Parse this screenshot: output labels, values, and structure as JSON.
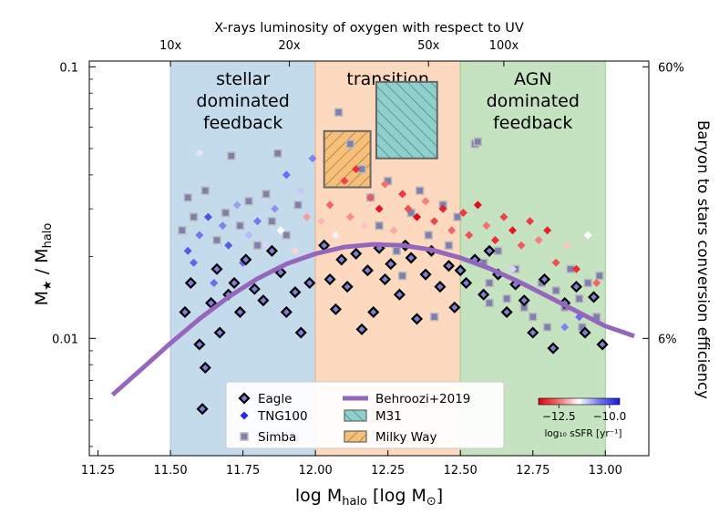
{
  "chart_data": {
    "type": "scatter",
    "top_axis_label": "X-rays luminosity of oxygen with respect to UV",
    "top_ticks": [
      {
        "x": 11.5,
        "label": "10x"
      },
      {
        "x": 11.91,
        "label": "20x"
      },
      {
        "x": 12.39,
        "label": "50x"
      },
      {
        "x": 12.65,
        "label": "100x"
      }
    ],
    "xlabel": "log M_halo [log M_⊙]",
    "ylabel": "M★ / M_halo",
    "right_ylabel": "Baryon to stars conversion efficiency",
    "xlim": [
      11.22,
      13.15
    ],
    "ylim_log": [
      0.0037,
      0.105
    ],
    "y_scale": "log",
    "x_ticks": [
      11.25,
      11.5,
      11.75,
      12.0,
      12.25,
      12.5,
      12.75,
      13.0
    ],
    "x_tick_labels": [
      "11.25",
      "11.50",
      "11.75",
      "12.00",
      "12.25",
      "12.50",
      "12.75",
      "13.00"
    ],
    "y_ticks": [
      {
        "y": 0.1,
        "label": "0.1"
      },
      {
        "y": 0.01,
        "label": "0.01"
      }
    ],
    "right_ticks": [
      {
        "y": 0.1,
        "label": "60%"
      },
      {
        "y": 0.01,
        "label": "6%"
      }
    ],
    "regions": [
      {
        "x0": 11.5,
        "x1": 12.0,
        "color": "#c4dbec",
        "border": "#9ec2e0",
        "label_lines": [
          "stellar",
          "dominated",
          "feedback"
        ]
      },
      {
        "x0": 12.0,
        "x1": 12.5,
        "color": "#fcd9bf",
        "border": "#f4b27f",
        "label_lines": [
          "transition"
        ]
      },
      {
        "x0": 12.5,
        "x1": 13.0,
        "color": "#c6e3c1",
        "border": "#98cc90",
        "label_lines": [
          "AGN",
          "dominated",
          "feedback"
        ]
      }
    ],
    "boxes": [
      {
        "name": "M31",
        "x0": 12.21,
        "x1": 12.42,
        "y0": 0.046,
        "y1": 0.088,
        "fill": "#8fcfcc",
        "hatch_dir": "ne"
      },
      {
        "name": "Milky Way",
        "x0": 12.03,
        "x1": 12.19,
        "y0": 0.036,
        "y1": 0.058,
        "fill": "#f7c07a",
        "hatch_dir": "nw"
      }
    ],
    "behroozi": {
      "name": "Behroozi+2019",
      "color": "#9467bd",
      "x": [
        11.3,
        11.4,
        11.5,
        11.6,
        11.7,
        11.8,
        11.9,
        12.0,
        12.1,
        12.2,
        12.3,
        12.4,
        12.5,
        12.6,
        12.7,
        12.8,
        12.9,
        13.0,
        13.1
      ],
      "y": [
        0.0062,
        0.0077,
        0.0096,
        0.0118,
        0.0142,
        0.0166,
        0.0188,
        0.0205,
        0.0217,
        0.0222,
        0.022,
        0.0212,
        0.0198,
        0.0181,
        0.0162,
        0.0143,
        0.0126,
        0.0111,
        0.0102
      ]
    },
    "series": [
      {
        "name": "Eagle",
        "marker": "diamond-outlined",
        "points": [
          [
            11.55,
            0.0125
          ],
          [
            11.57,
            0.016
          ],
          [
            11.6,
            0.0095
          ],
          [
            11.61,
            0.0055
          ],
          [
            11.62,
            0.0078
          ],
          [
            11.64,
            0.0135
          ],
          [
            11.66,
            0.018
          ],
          [
            11.67,
            0.0105
          ],
          [
            11.7,
            0.0145
          ],
          [
            11.72,
            0.016
          ],
          [
            11.74,
            0.0125
          ],
          [
            11.76,
            0.0195
          ],
          [
            11.79,
            0.0152
          ],
          [
            11.82,
            0.0138
          ],
          [
            11.85,
            0.021
          ],
          [
            11.88,
            0.0175
          ],
          [
            11.9,
            0.0125
          ],
          [
            11.93,
            0.0148
          ],
          [
            11.95,
            0.0105
          ],
          [
            11.98,
            0.016
          ],
          [
            12.03,
            0.022
          ],
          [
            12.05,
            0.0165
          ],
          [
            12.07,
            0.0128
          ],
          [
            12.09,
            0.0195
          ],
          [
            12.11,
            0.0155
          ],
          [
            12.14,
            0.0205
          ],
          [
            12.16,
            0.0108
          ],
          [
            12.18,
            0.0178
          ],
          [
            12.2,
            0.0125
          ],
          [
            12.22,
            0.0215
          ],
          [
            12.24,
            0.0165
          ],
          [
            12.26,
            0.0188
          ],
          [
            12.29,
            0.0145
          ],
          [
            12.31,
            0.022
          ],
          [
            12.33,
            0.0198
          ],
          [
            12.35,
            0.0118
          ],
          [
            12.38,
            0.0172
          ],
          [
            12.4,
            0.021
          ],
          [
            12.43,
            0.0155
          ],
          [
            12.46,
            0.0185
          ],
          [
            12.48,
            0.013
          ],
          [
            12.5,
            0.0178
          ],
          [
            12.52,
            0.016
          ],
          [
            12.55,
            0.0195
          ],
          [
            12.58,
            0.0145
          ],
          [
            12.6,
            0.021
          ],
          [
            12.63,
            0.0172
          ],
          [
            12.66,
            0.0125
          ],
          [
            12.69,
            0.0158
          ],
          [
            12.72,
            0.0138
          ],
          [
            12.75,
            0.0105
          ],
          [
            12.79,
            0.0165
          ],
          [
            12.82,
            0.0092
          ],
          [
            12.86,
            0.0135
          ],
          [
            12.9,
            0.0155
          ],
          [
            12.93,
            0.0105
          ],
          [
            12.96,
            0.0142
          ],
          [
            12.99,
            0.0095
          ]
        ]
      },
      {
        "name": "TNG100",
        "marker": "diamond",
        "points": [
          [
            11.56,
            0.021,
            -10.2
          ],
          [
            11.58,
            0.019,
            -10.3
          ],
          [
            11.6,
            0.024,
            -10.5
          ],
          [
            11.63,
            0.028,
            -10.1
          ],
          [
            11.65,
            0.016,
            -10.4
          ],
          [
            11.68,
            0.026,
            -10.6
          ],
          [
            11.7,
            0.022,
            -10.2
          ],
          [
            11.73,
            0.031,
            -10.8
          ],
          [
            11.75,
            0.019,
            -10.3
          ],
          [
            11.77,
            0.024,
            -11.0
          ],
          [
            11.8,
            0.027,
            -10.5
          ],
          [
            11.83,
            0.022,
            -11.2
          ],
          [
            11.86,
            0.03,
            -10.7
          ],
          [
            11.88,
            0.025,
            -11.5
          ],
          [
            11.9,
            0.04,
            -10.4
          ],
          [
            11.93,
            0.021,
            -11.8
          ],
          [
            11.95,
            0.035,
            -11.1
          ],
          [
            11.97,
            0.028,
            -12.2
          ],
          [
            11.99,
            0.046,
            -10.6
          ],
          [
            11.6,
            0.048,
            -11.3
          ],
          [
            12.02,
            0.027,
            -12.0
          ],
          [
            12.05,
            0.031,
            -12.6
          ],
          [
            12.07,
            0.024,
            -11.4
          ],
          [
            12.1,
            0.038,
            -12.9
          ],
          [
            12.12,
            0.028,
            -12.3
          ],
          [
            12.14,
            0.042,
            -13.1
          ],
          [
            12.17,
            0.026,
            -11.9
          ],
          [
            12.19,
            0.033,
            -12.7
          ],
          [
            12.22,
            0.03,
            -13.3
          ],
          [
            12.24,
            0.037,
            -12.5
          ],
          [
            12.27,
            0.025,
            -12.1
          ],
          [
            12.3,
            0.034,
            -13.0
          ],
          [
            12.32,
            0.03,
            -12.8
          ],
          [
            12.35,
            0.028,
            -13.4
          ],
          [
            12.38,
            0.032,
            -12.4
          ],
          [
            12.41,
            0.027,
            -12.9
          ],
          [
            12.44,
            0.03,
            -13.2
          ],
          [
            12.47,
            0.025,
            -12.6
          ],
          [
            12.51,
            0.029,
            -13.0
          ],
          [
            12.53,
            0.024,
            -12.8
          ],
          [
            12.56,
            0.031,
            -13.4
          ],
          [
            12.59,
            0.026,
            -12.5
          ],
          [
            12.62,
            0.023,
            -13.1
          ],
          [
            12.65,
            0.028,
            -12.9
          ],
          [
            12.68,
            0.025,
            -13.3
          ],
          [
            12.71,
            0.022,
            -12.7
          ],
          [
            12.74,
            0.027,
            -13.0
          ],
          [
            12.77,
            0.023,
            -12.4
          ],
          [
            12.8,
            0.025,
            -13.2
          ],
          [
            12.83,
            0.019,
            -12.8
          ],
          [
            12.87,
            0.022,
            -11.9
          ],
          [
            12.9,
            0.018,
            -13.1
          ],
          [
            12.94,
            0.024,
            -11.5
          ],
          [
            12.97,
            0.016,
            -12.6
          ],
          [
            12.68,
            0.018,
            -11.2
          ],
          [
            12.86,
            0.011,
            -10.6
          ],
          [
            12.91,
            0.012,
            -10.4
          ]
        ]
      },
      {
        "name": "Simba",
        "marker": "square",
        "points": [
          [
            11.54,
            0.025
          ],
          [
            11.56,
            0.033
          ],
          [
            11.58,
            0.028
          ],
          [
            11.62,
            0.035
          ],
          [
            11.66,
            0.023
          ],
          [
            11.69,
            0.029
          ],
          [
            11.71,
            0.047
          ],
          [
            11.74,
            0.026
          ],
          [
            11.77,
            0.032
          ],
          [
            11.8,
            0.022
          ],
          [
            11.83,
            0.034
          ],
          [
            11.85,
            0.027
          ],
          [
            11.87,
            0.048
          ],
          [
            11.9,
            0.024
          ],
          [
            11.94,
            0.031
          ],
          [
            12.08,
            0.068
          ],
          [
            12.12,
            0.052
          ],
          [
            12.16,
            0.042
          ],
          [
            12.19,
            0.033
          ],
          [
            12.22,
            0.026
          ],
          [
            12.25,
            0.038
          ],
          [
            12.28,
            0.021
          ],
          [
            12.3,
            0.017
          ],
          [
            12.33,
            0.029
          ],
          [
            12.36,
            0.035
          ],
          [
            12.39,
            0.024
          ],
          [
            12.41,
            0.012
          ],
          [
            12.44,
            0.031
          ],
          [
            12.46,
            0.022
          ],
          [
            12.49,
            0.028
          ],
          [
            12.55,
            0.052
          ],
          [
            12.56,
            0.053
          ],
          [
            12.58,
            0.019
          ],
          [
            12.6,
            0.016
          ],
          [
            12.63,
            0.021
          ],
          [
            12.66,
            0.014
          ],
          [
            12.69,
            0.018
          ],
          [
            12.72,
            0.013
          ],
          [
            12.75,
            0.012
          ],
          [
            12.78,
            0.016
          ],
          [
            12.8,
            0.011
          ],
          [
            12.83,
            0.015
          ],
          [
            12.86,
            0.013
          ],
          [
            12.88,
            0.018
          ],
          [
            12.91,
            0.014
          ],
          [
            12.94,
            0.016
          ],
          [
            12.97,
            0.012
          ],
          [
            12.98,
            0.017
          ],
          [
            12.92,
            0.011
          ],
          [
            12.6,
            0.0135
          ]
        ]
      }
    ],
    "legend": {
      "placement": "bottom-center",
      "entries": [
        "Eagle",
        "TNG100",
        "Simba",
        "Behroozi+2019",
        "M31",
        "Milky Way"
      ]
    },
    "colorbar": {
      "label": "log₁₀ sSFR [yr⁻¹]",
      "range": [
        -13.5,
        -9.5
      ],
      "ticks": [
        {
          "value": -12.5,
          "label": "−12.5"
        },
        {
          "value": -10.0,
          "label": "−10.0"
        }
      ],
      "colors": [
        "#e3000f",
        "#f57070",
        "#ffffff",
        "#7575ee",
        "#1a1adb"
      ]
    },
    "colors": {
      "eagle_fill": "#7f7fd8",
      "eagle_edge": "#000000",
      "simba_fill": "#7f7fad",
      "simba_edge": "#bcbcbc"
    }
  }
}
